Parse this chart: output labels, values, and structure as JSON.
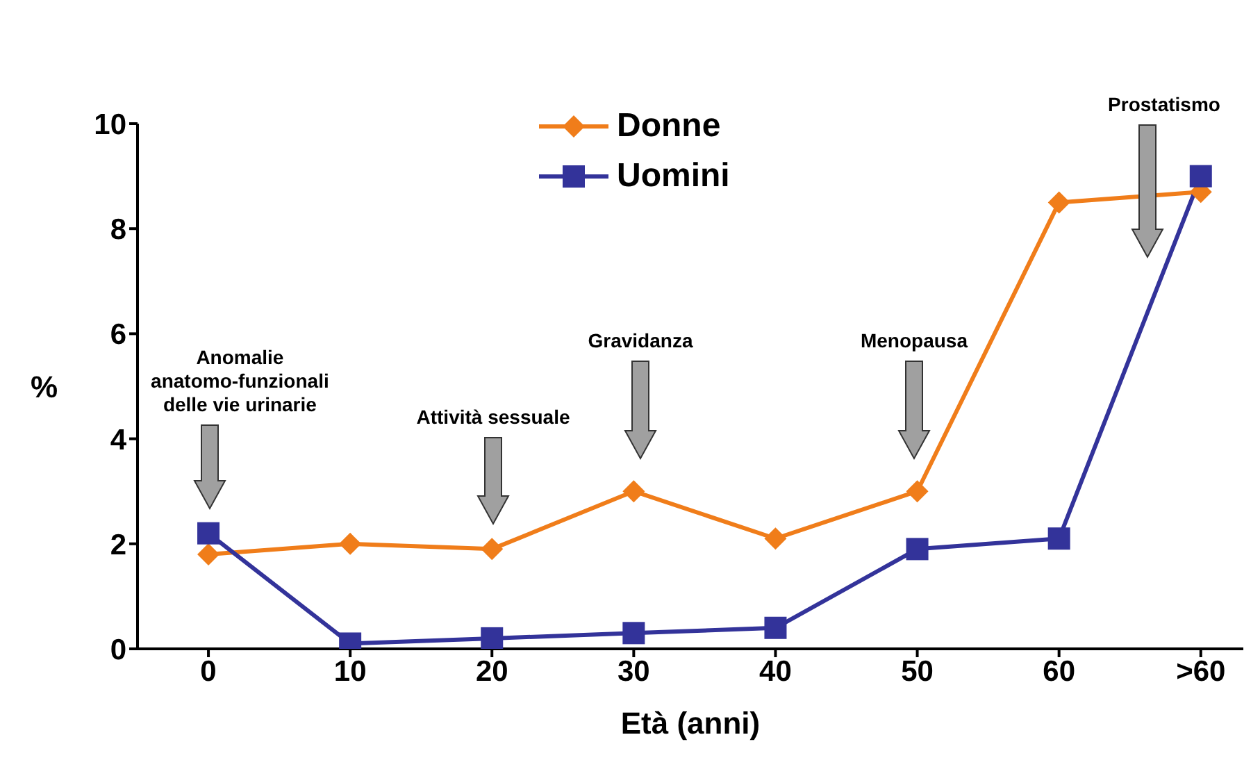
{
  "chart_data": {
    "type": "line",
    "xlabel": "Età (anni)",
    "ylabel": "%",
    "categories": [
      "0",
      "10",
      "20",
      "30",
      "40",
      "50",
      "60",
      ">60"
    ],
    "series": [
      {
        "name": "Donne",
        "color": "#f07d1a",
        "marker": "diamond",
        "values": [
          1.8,
          2.0,
          1.9,
          3.0,
          2.1,
          3.0,
          8.5,
          8.7
        ]
      },
      {
        "name": "Uomini",
        "color": "#33339a",
        "marker": "square",
        "values": [
          2.2,
          0.1,
          0.2,
          0.3,
          0.4,
          1.9,
          2.1,
          9.0
        ]
      }
    ],
    "ylim": [
      0,
      10
    ],
    "yticks": [
      0,
      2,
      4,
      6,
      8,
      10
    ],
    "grid": false,
    "legend": "top",
    "annotations": [
      "Anomalie anatomo-funzionali delle vie urinarie",
      "Attività sessuale",
      "Gravidanza",
      "Menopausa",
      "Prostatismo"
    ]
  }
}
